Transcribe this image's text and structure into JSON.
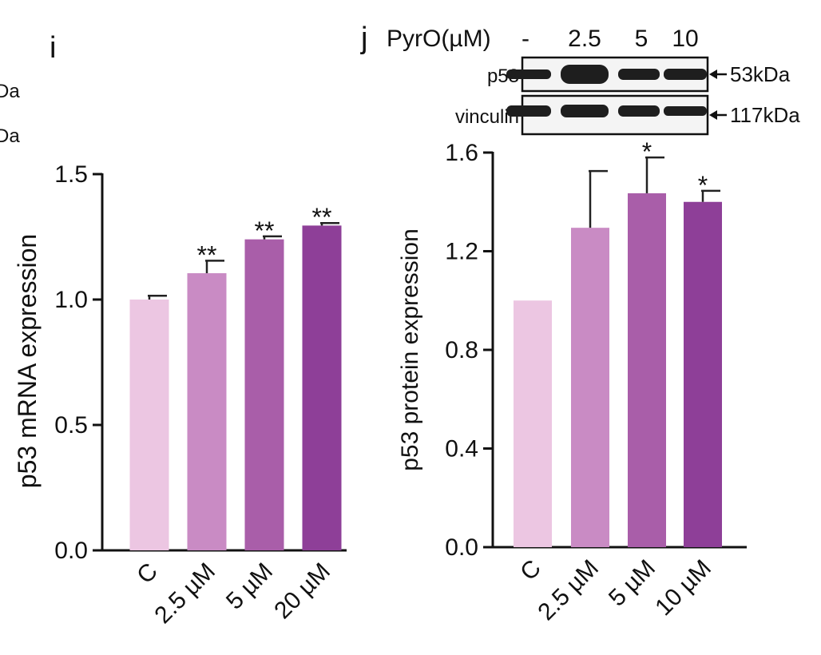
{
  "clipped_left": {
    "text1": "Da",
    "text2": "Da"
  },
  "panels": {
    "i": {
      "letter": "i"
    },
    "j": {
      "letter": "j"
    }
  },
  "blot": {
    "treatment_label": "PyrO(µM)",
    "lane_labels": [
      "-",
      "2.5",
      "5",
      "10"
    ],
    "rows": [
      {
        "label": "p53",
        "size": "53kDa"
      },
      {
        "label": "vinculin",
        "size": "117kDa"
      }
    ],
    "band_color": "#1e1e1e"
  },
  "chart_data": [
    {
      "panel": "i",
      "type": "bar",
      "categories": [
        "C",
        "2.5 µM",
        "5 µM",
        "20 µM"
      ],
      "values": [
        1.0,
        1.105,
        1.24,
        1.295
      ],
      "errors": [
        0.015,
        0.05,
        0.012,
        0.01
      ],
      "significance": [
        "",
        "**",
        "**",
        "**"
      ],
      "colors": [
        "#ecc6e2",
        "#c98bc4",
        "#a95ea9",
        "#8e3f98"
      ],
      "ylabel": "p53 mRNA expression",
      "ylim": [
        0,
        1.5
      ],
      "yticks": [
        0.0,
        0.5,
        1.0,
        1.5
      ],
      "ytick_labels": [
        "0.0",
        "0.5",
        "1.0",
        "1.5"
      ]
    },
    {
      "panel": "j",
      "type": "bar",
      "categories": [
        "C",
        "2.5 µM",
        "5 µM",
        "10 µM"
      ],
      "values": [
        1.0,
        1.295,
        1.435,
        1.4
      ],
      "errors": [
        0,
        0.23,
        0.145,
        0.045
      ],
      "significance": [
        "",
        "",
        "*",
        "*"
      ],
      "colors": [
        "#ecc6e2",
        "#c98bc4",
        "#a95ea9",
        "#8e3f98"
      ],
      "ylabel": "p53 protein expression",
      "ylim": [
        0,
        1.6
      ],
      "yticks": [
        0.0,
        0.4,
        0.8,
        1.2,
        1.6
      ],
      "ytick_labels": [
        "0.0",
        "0.4",
        "0.8",
        "1.2",
        "1.6"
      ]
    }
  ]
}
